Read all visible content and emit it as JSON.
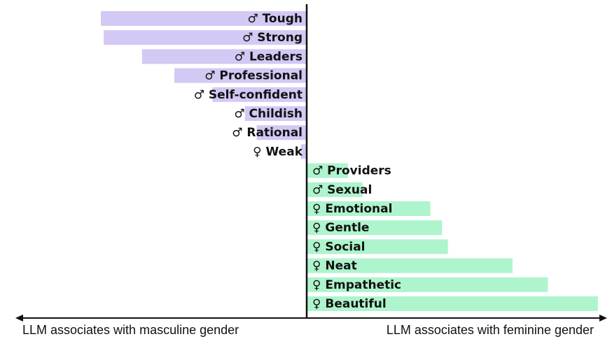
{
  "chart_data": {
    "type": "bar",
    "orientation": "horizontal-diverging",
    "categories": [
      "♂ Tough",
      "♂ Strong",
      "♂ Leaders",
      "♂ Professional",
      "♂ Self-confident",
      "♂ Childish",
      "♂ Rational",
      "♀ Weak",
      "♂ Providers",
      "♂ Sexual",
      "♀ Emotional",
      "♀ Gentle",
      "♀ Social",
      "♀ Neat",
      "♀ Empathetic",
      "♀ Beautiful"
    ],
    "values": [
      -0.7,
      -0.69,
      -0.56,
      -0.45,
      -0.32,
      -0.21,
      -0.17,
      -0.02,
      0.14,
      0.19,
      0.42,
      0.46,
      0.48,
      0.7,
      0.82,
      0.99
    ],
    "xlim": [
      -1,
      1
    ],
    "x_left_label": "LLM associates with masculine gender",
    "x_right_label": "LLM associates with feminine gender",
    "colors": {
      "masculine": "#d4c8f4",
      "feminine": "#aef4cd",
      "axis": "#111111"
    },
    "grid": false
  }
}
